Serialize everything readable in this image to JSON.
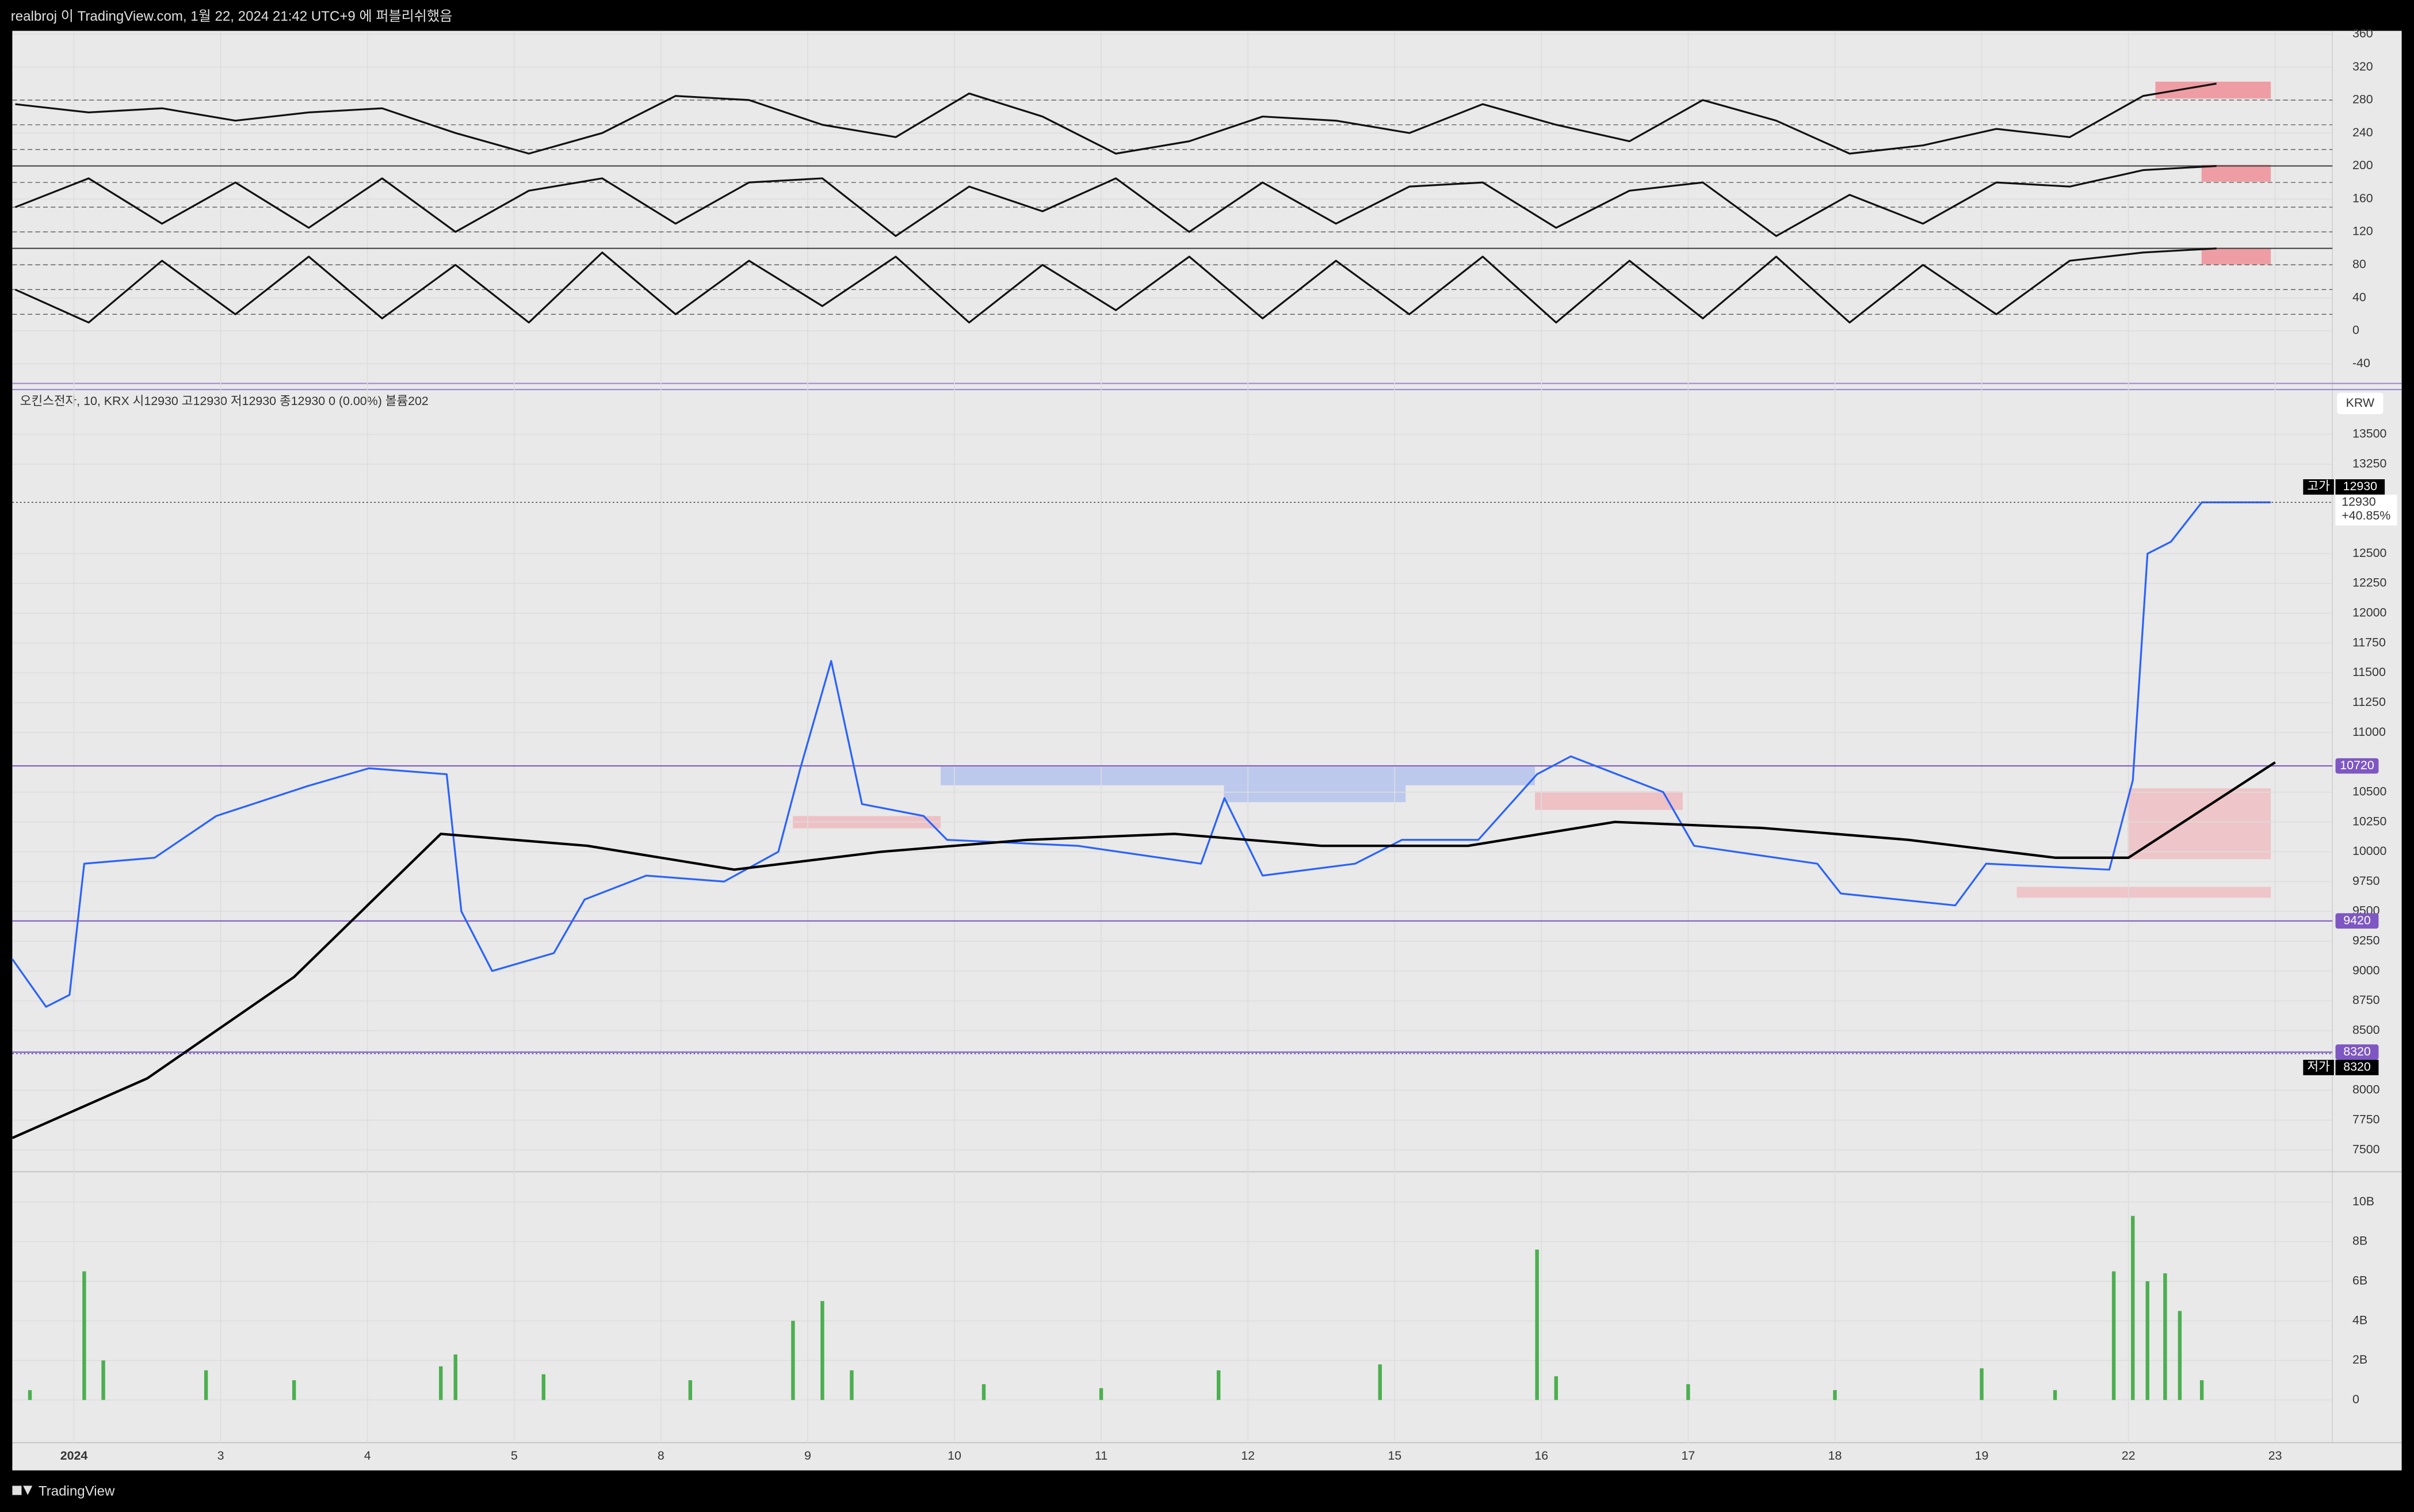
{
  "header": "realbroj 이 TradingView.com, 1월 22, 2024 21:42 UTC+9 에 퍼블리쉬했음",
  "footer": "TradingView",
  "chart_data": [
    {
      "type": "line",
      "ylim": [
        -62,
        364
      ],
      "yticks": [
        -40,
        0,
        40,
        80,
        120,
        160,
        200,
        240,
        280,
        320,
        360
      ],
      "levels": [
        280,
        250,
        220,
        180,
        150,
        120,
        80,
        50,
        20
      ],
      "separators": [
        200,
        100
      ],
      "x": [
        -0.4,
        0.1,
        0.6,
        1.1,
        1.6,
        2.1,
        2.6,
        3.1,
        3.6,
        4.1,
        4.6,
        5.1,
        5.6,
        6.1,
        6.6,
        7.1,
        7.6,
        8.1,
        8.6,
        9.1,
        9.6,
        10.1,
        10.6,
        11.1,
        11.6,
        12.1,
        12.6,
        13.1,
        13.6,
        14.1,
        14.6
      ],
      "series": [
        {
          "color": "#111111",
          "values": [
            275,
            265,
            270,
            255,
            265,
            270,
            240,
            215,
            240,
            285,
            280,
            250,
            235,
            288,
            260,
            215,
            230,
            260,
            255,
            240,
            275,
            250,
            230,
            280,
            255,
            215,
            225,
            245,
            235,
            285,
            300
          ]
        },
        {
          "color": "#111111",
          "values": [
            150,
            185,
            130,
            180,
            125,
            185,
            120,
            170,
            185,
            130,
            180,
            185,
            115,
            175,
            145,
            185,
            120,
            180,
            130,
            175,
            180,
            125,
            170,
            180,
            115,
            165,
            130,
            180,
            175,
            195,
            200
          ]
        },
        {
          "color": "#111111",
          "values": [
            50,
            10,
            85,
            20,
            90,
            15,
            80,
            10,
            95,
            20,
            85,
            30,
            90,
            10,
            80,
            25,
            90,
            15,
            85,
            20,
            90,
            10,
            85,
            15,
            90,
            10,
            80,
            20,
            85,
            95,
            100
          ]
        }
      ]
    },
    {
      "type": "line",
      "legend": "오킨스전자, 10, KRX  시12930  고12930  저12930  종12930  0 (0.00%)  볼륨202",
      "currency": "KRW",
      "ylim": [
        7330,
        13850
      ],
      "yticks": [
        7500,
        7750,
        8000,
        8500,
        8750,
        9000,
        9250,
        9500,
        9750,
        10000,
        10250,
        10500,
        11000,
        11250,
        11500,
        11750,
        12000,
        12250,
        12500,
        13250,
        13500
      ],
      "levels": [
        10720,
        9420,
        8320
      ],
      "high": {
        "label": "고가",
        "value": 12930
      },
      "low": {
        "label": "저가",
        "value": 8320
      },
      "last": {
        "value": 12930,
        "change": "+40.85%"
      },
      "series": [
        {
          "color": "#2962ff",
          "x": [
            -0.42,
            -0.19,
            -0.03,
            0.07,
            0.55,
            0.97,
            1.59,
            2.01,
            2.54,
            2.64,
            2.85,
            3.27,
            3.48,
            3.9,
            4.43,
            4.8,
            4.95,
            5.16,
            5.37,
            5.79,
            5.95,
            6.84,
            7.68,
            7.84,
            8.1,
            8.73,
            9.05,
            9.57,
            9.97,
            10.2,
            10.83,
            11.04,
            11.88,
            12.04,
            12.82,
            13.03,
            13.87,
            14.03,
            14.13,
            14.29,
            14.5,
            14.97
          ],
          "values": [
            9100,
            8700,
            8800,
            9900,
            9950,
            10300,
            10550,
            10700,
            10650,
            9500,
            9000,
            9150,
            9600,
            9800,
            9750,
            10000,
            10700,
            11600,
            10400,
            10300,
            10100,
            10050,
            9900,
            10450,
            9800,
            9900,
            10100,
            10100,
            10650,
            10800,
            10500,
            10050,
            9900,
            9650,
            9550,
            9900,
            9850,
            10600,
            12500,
            12600,
            12930,
            12930
          ]
        },
        {
          "color": "#000000",
          "x": [
            -0.42,
            0.5,
            1.5,
            2.5,
            3.5,
            4.5,
            5.5,
            6.5,
            7.5,
            8.5,
            9.5,
            10.5,
            11.5,
            12.5,
            13.5,
            14.0,
            15.0
          ],
          "values": [
            7600,
            8100,
            8950,
            10150,
            10050,
            9850,
            10000,
            10100,
            10150,
            10050,
            10050,
            10250,
            10200,
            10100,
            9950,
            9950,
            10750
          ]
        }
      ]
    },
    {
      "type": "bar",
      "color": "#4caf50",
      "xlim": [
        -0.42,
        15.39
      ],
      "xticks": [
        {
          "value": 0,
          "label": "2024"
        },
        {
          "value": 1,
          "label": "3"
        },
        {
          "value": 2,
          "label": "4"
        },
        {
          "value": 3,
          "label": "5"
        },
        {
          "value": 4,
          "label": "8"
        },
        {
          "value": 5,
          "label": "9"
        },
        {
          "value": 6,
          "label": "10"
        },
        {
          "value": 7,
          "label": "11"
        },
        {
          "value": 8,
          "label": "12"
        },
        {
          "value": 9,
          "label": "15"
        },
        {
          "value": 10,
          "label": "16"
        },
        {
          "value": 11,
          "label": "17"
        },
        {
          "value": 12,
          "label": "18"
        },
        {
          "value": 13,
          "label": "19"
        },
        {
          "value": 14,
          "label": "22"
        },
        {
          "value": 15,
          "label": "23"
        }
      ],
      "ylim": [
        -2000000000,
        11300000000
      ],
      "yticks": [
        0,
        {
          "value": 2000000000,
          "label": "2B"
        },
        {
          "value": 4000000000,
          "label": "4B"
        },
        {
          "value": 6000000000,
          "label": "6B"
        },
        {
          "value": 8000000000,
          "label": "8B"
        },
        {
          "value": 10000000000,
          "label": "10B"
        }
      ],
      "x": [
        -0.3,
        0.07,
        0.2,
        0.9,
        1.5,
        2.5,
        2.6,
        3.2,
        4.2,
        4.9,
        5.1,
        5.3,
        6.2,
        7.0,
        7.8,
        8.9,
        9.97,
        10.1,
        11.0,
        12.0,
        13.0,
        13.5,
        13.9,
        14.03,
        14.13,
        14.25,
        14.35,
        14.5
      ],
      "values": [
        500000000,
        6500000000,
        2000000000,
        1500000000,
        1000000000,
        1700000000,
        2300000000,
        1300000000,
        1000000000,
        4000000000,
        5000000000,
        1500000000,
        800000000,
        600000000,
        1500000000,
        1800000000,
        7600000000,
        1200000000,
        800000000,
        500000000,
        1600000000,
        500000000,
        6500000000,
        9300000000,
        6000000000,
        6400000000,
        4500000000,
        1000000000
      ]
    }
  ]
}
